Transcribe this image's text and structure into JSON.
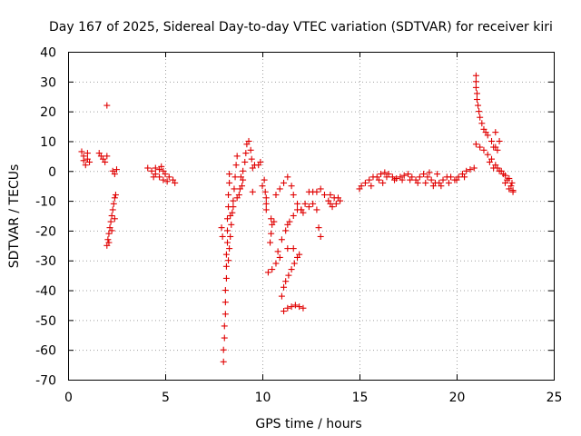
{
  "chart_data": {
    "type": "scatter",
    "title": "Day 167 of 2025, Sidereal Day-to-day VTEC variation (SDTVAR) for receiver kiri",
    "xlabel": "GPS time / hours",
    "ylabel": "SDTVAR / TECUs",
    "xlim": [
      0,
      25
    ],
    "ylim": [
      -70,
      40
    ],
    "xticks": [
      0,
      5,
      10,
      15,
      20,
      25
    ],
    "yticks": [
      40,
      30,
      20,
      10,
      0,
      -10,
      -20,
      -30,
      -40,
      -50,
      -60,
      -70
    ],
    "grid": true,
    "marker": "plus",
    "color": "#e00000",
    "series": [
      {
        "name": "SDTVAR",
        "points": [
          [
            0.7,
            6.5
          ],
          [
            0.8,
            5
          ],
          [
            0.8,
            3.5
          ],
          [
            0.9,
            2
          ],
          [
            1.0,
            4
          ],
          [
            1.0,
            6
          ],
          [
            1.1,
            3
          ],
          [
            1.6,
            6
          ],
          [
            1.7,
            5
          ],
          [
            1.8,
            4
          ],
          [
            1.9,
            3
          ],
          [
            2.0,
            5
          ],
          [
            2.0,
            22
          ],
          [
            2.0,
            -25
          ],
          [
            2.05,
            -23
          ],
          [
            2.1,
            -21
          ],
          [
            2.15,
            -19
          ],
          [
            2.2,
            -17
          ],
          [
            2.25,
            -15
          ],
          [
            2.3,
            -13
          ],
          [
            2.35,
            -11
          ],
          [
            2.4,
            -9
          ],
          [
            2.45,
            -8
          ],
          [
            2.1,
            -24
          ],
          [
            2.25,
            -20
          ],
          [
            2.4,
            -16
          ],
          [
            2.3,
            0
          ],
          [
            2.4,
            -1
          ],
          [
            2.5,
            0.5
          ],
          [
            4.1,
            1
          ],
          [
            4.3,
            0
          ],
          [
            4.5,
            -1
          ],
          [
            4.7,
            -2
          ],
          [
            4.9,
            -3
          ],
          [
            4.5,
            1
          ],
          [
            4.7,
            0.5
          ],
          [
            4.9,
            0
          ],
          [
            5.0,
            -1
          ],
          [
            5.2,
            -2
          ],
          [
            5.4,
            -3
          ],
          [
            5.5,
            -4
          ],
          [
            4.8,
            1.5
          ],
          [
            4.4,
            -2
          ],
          [
            5.1,
            -3.5
          ],
          [
            8.0,
            -64
          ],
          [
            8.0,
            -60
          ],
          [
            8.05,
            -56
          ],
          [
            8.05,
            -52
          ],
          [
            8.1,
            -48
          ],
          [
            8.1,
            -44
          ],
          [
            8.1,
            -40
          ],
          [
            8.15,
            -36
          ],
          [
            8.15,
            -32
          ],
          [
            8.15,
            -28
          ],
          [
            8.2,
            -24
          ],
          [
            8.2,
            -20
          ],
          [
            8.2,
            -16
          ],
          [
            8.25,
            -12
          ],
          [
            8.25,
            -8
          ],
          [
            8.3,
            -4
          ],
          [
            8.3,
            -1
          ],
          [
            8.25,
            -30
          ],
          [
            8.3,
            -26
          ],
          [
            8.35,
            -22
          ],
          [
            8.4,
            -18
          ],
          [
            8.45,
            -14
          ],
          [
            8.5,
            -10
          ],
          [
            8.55,
            -6
          ],
          [
            8.6,
            -2
          ],
          [
            8.65,
            2
          ],
          [
            8.7,
            5
          ],
          [
            8.35,
            -15
          ],
          [
            8.5,
            -12
          ],
          [
            8.7,
            -9
          ],
          [
            8.85,
            -6
          ],
          [
            9.0,
            -3
          ],
          [
            8.8,
            -8
          ],
          [
            8.95,
            -5
          ],
          [
            8.9,
            -2
          ],
          [
            9.0,
            0
          ],
          [
            9.1,
            3
          ],
          [
            9.15,
            6
          ],
          [
            9.2,
            9
          ],
          [
            9.3,
            10
          ],
          [
            9.4,
            7
          ],
          [
            9.45,
            4
          ],
          [
            9.5,
            1
          ],
          [
            9.6,
            2
          ],
          [
            9.8,
            2
          ],
          [
            9.9,
            3
          ],
          [
            9.5,
            -7
          ],
          [
            7.9,
            -19
          ],
          [
            7.95,
            -22
          ],
          [
            10.0,
            -5
          ],
          [
            10.1,
            -3
          ],
          [
            10.2,
            -13
          ],
          [
            10.2,
            -9
          ],
          [
            10.15,
            -7
          ],
          [
            10.2,
            -11
          ],
          [
            10.4,
            -24
          ],
          [
            10.45,
            -21
          ],
          [
            10.5,
            -18
          ],
          [
            10.45,
            -16
          ],
          [
            10.6,
            -17
          ],
          [
            10.3,
            -34
          ],
          [
            10.5,
            -33
          ],
          [
            10.7,
            -31
          ],
          [
            10.9,
            -29
          ],
          [
            10.7,
            -8
          ],
          [
            10.9,
            -6
          ],
          [
            11.1,
            -4
          ],
          [
            11.3,
            -2
          ],
          [
            11.5,
            -5
          ],
          [
            11.6,
            -8
          ],
          [
            11.8,
            -11
          ],
          [
            12.0,
            -13
          ],
          [
            12.1,
            -14
          ],
          [
            10.8,
            -27
          ],
          [
            11.0,
            -23
          ],
          [
            11.2,
            -20
          ],
          [
            11.4,
            -17
          ],
          [
            11.6,
            -15
          ],
          [
            11.8,
            -13
          ],
          [
            11.3,
            -18
          ],
          [
            11.0,
            -42
          ],
          [
            11.1,
            -39
          ],
          [
            11.2,
            -37
          ],
          [
            11.35,
            -35
          ],
          [
            11.5,
            -33
          ],
          [
            11.65,
            -31
          ],
          [
            11.8,
            -29
          ],
          [
            11.9,
            -28
          ],
          [
            11.6,
            -26
          ],
          [
            11.3,
            -26
          ],
          [
            11.1,
            -47
          ],
          [
            11.3,
            -46
          ],
          [
            11.5,
            -45.5
          ],
          [
            11.7,
            -45
          ],
          [
            11.9,
            -45.5
          ],
          [
            12.1,
            -46
          ],
          [
            12.0,
            -13
          ],
          [
            12.2,
            -11
          ],
          [
            12.4,
            -12
          ],
          [
            12.6,
            -11
          ],
          [
            12.8,
            -13
          ],
          [
            12.4,
            -7
          ],
          [
            12.6,
            -7
          ],
          [
            12.8,
            -7
          ],
          [
            13.0,
            -6
          ],
          [
            13.2,
            -8
          ],
          [
            13.4,
            -10
          ],
          [
            13.5,
            -11
          ],
          [
            13.6,
            -12
          ],
          [
            13.8,
            -11
          ],
          [
            14.0,
            -10
          ],
          [
            13.7,
            -9
          ],
          [
            13.9,
            -9
          ],
          [
            13.5,
            -8
          ],
          [
            12.9,
            -19
          ],
          [
            13.0,
            -22
          ],
          [
            15.0,
            -6
          ],
          [
            15.1,
            -5
          ],
          [
            15.3,
            -4
          ],
          [
            15.5,
            -3
          ],
          [
            15.7,
            -2
          ],
          [
            15.9,
            -2
          ],
          [
            16.1,
            -1
          ],
          [
            16.3,
            -0.5
          ],
          [
            16.5,
            -1
          ],
          [
            16.7,
            -2
          ],
          [
            16.9,
            -2.5
          ],
          [
            17.1,
            -2
          ],
          [
            17.3,
            -1.5
          ],
          [
            17.5,
            -1
          ],
          [
            17.7,
            -2
          ],
          [
            17.9,
            -3
          ],
          [
            18.1,
            -2
          ],
          [
            18.3,
            -1
          ],
          [
            18.5,
            -2
          ],
          [
            18.7,
            -3
          ],
          [
            18.9,
            -4
          ],
          [
            19.1,
            -4
          ],
          [
            19.3,
            -3
          ],
          [
            19.5,
            -2
          ],
          [
            19.7,
            -2
          ],
          [
            19.9,
            -3
          ],
          [
            20.1,
            -2
          ],
          [
            20.3,
            -1
          ],
          [
            20.5,
            0
          ],
          [
            20.7,
            0.5
          ],
          [
            20.9,
            1
          ],
          [
            15.6,
            -5
          ],
          [
            16.0,
            -3
          ],
          [
            16.4,
            -2
          ],
          [
            16.8,
            -3
          ],
          [
            17.2,
            -3
          ],
          [
            17.6,
            -3
          ],
          [
            18.0,
            -4
          ],
          [
            18.4,
            -4
          ],
          [
            18.8,
            -5
          ],
          [
            19.2,
            -5
          ],
          [
            19.6,
            -4
          ],
          [
            20.0,
            -3
          ],
          [
            20.4,
            -2
          ],
          [
            19.0,
            -1
          ],
          [
            18.6,
            -0.5
          ],
          [
            16.2,
            -4
          ],
          [
            21.0,
            32
          ],
          [
            21.0,
            30
          ],
          [
            21.0,
            28
          ],
          [
            21.05,
            26
          ],
          [
            21.05,
            24
          ],
          [
            21.1,
            22
          ],
          [
            21.15,
            20
          ],
          [
            21.2,
            18
          ],
          [
            21.3,
            16
          ],
          [
            21.4,
            14
          ],
          [
            21.5,
            13
          ],
          [
            21.6,
            12
          ],
          [
            21.8,
            10
          ],
          [
            21.9,
            8
          ],
          [
            22.0,
            8
          ],
          [
            22.1,
            7
          ],
          [
            22.0,
            13
          ],
          [
            22.2,
            10
          ],
          [
            21.0,
            9
          ],
          [
            21.2,
            8
          ],
          [
            21.4,
            7
          ],
          [
            21.6,
            5.5
          ],
          [
            21.8,
            4
          ],
          [
            22.0,
            2
          ],
          [
            22.2,
            0
          ],
          [
            22.4,
            -1
          ],
          [
            22.6,
            -3
          ],
          [
            22.8,
            -5
          ],
          [
            22.9,
            -7
          ],
          [
            22.5,
            -4
          ],
          [
            22.7,
            -6
          ],
          [
            21.7,
            3
          ],
          [
            21.9,
            1
          ],
          [
            22.1,
            1
          ],
          [
            22.3,
            0
          ],
          [
            22.5,
            -1.5
          ],
          [
            22.7,
            -2.5
          ],
          [
            22.85,
            -4
          ],
          [
            22.9,
            -6.5
          ]
        ]
      }
    ]
  }
}
